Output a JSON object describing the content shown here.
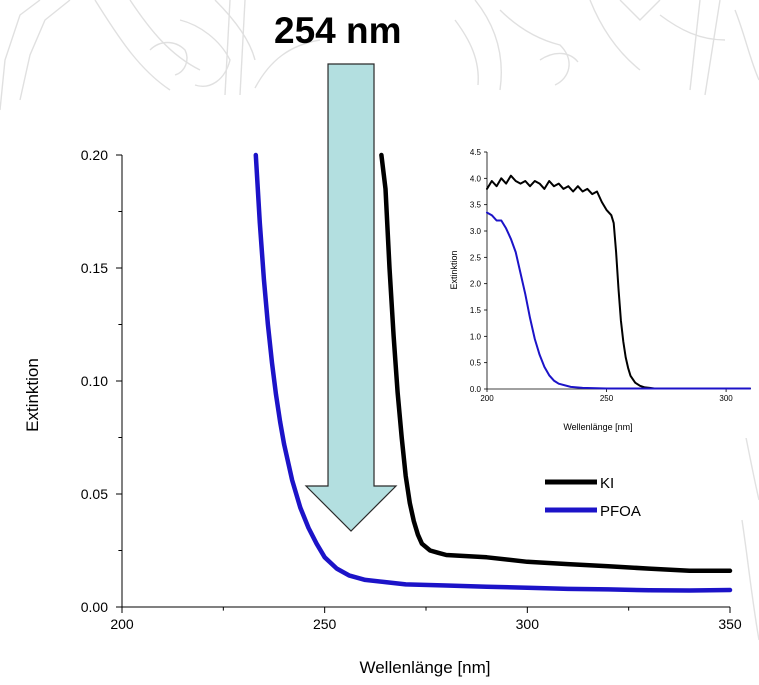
{
  "colors": {
    "ki": "#000000",
    "pfoa": "#1c13c8",
    "arrow_fill": "#b3dfe0",
    "arrow_stroke": "#2a2a2a",
    "watermark": "#d9d9d9"
  },
  "annotation": {
    "text": "254 nm"
  },
  "chart_data": [
    {
      "type": "line",
      "role": "main",
      "xlabel": "Wellenlänge [nm]",
      "ylabel": "Extinktion",
      "xlim": [
        200,
        350
      ],
      "ylim": [
        0,
        0.2
      ],
      "xticks": [
        "200",
        "250",
        "300",
        "350"
      ],
      "yticks": [
        "0.00",
        "0.05",
        "0.10",
        "0.15",
        "0.20"
      ],
      "legend": {
        "position": "bottom-right",
        "entries": [
          "KI",
          "PFOA"
        ]
      },
      "series": [
        {
          "name": "KI",
          "color": "#000000",
          "x": [
            264,
            265,
            266,
            267,
            268,
            269,
            270,
            271,
            272,
            273,
            274,
            276,
            278,
            280,
            285,
            290,
            300,
            310,
            320,
            330,
            340,
            350
          ],
          "y": [
            0.2,
            0.185,
            0.15,
            0.12,
            0.095,
            0.075,
            0.058,
            0.046,
            0.038,
            0.032,
            0.028,
            0.025,
            0.024,
            0.023,
            0.0225,
            0.022,
            0.02,
            0.019,
            0.018,
            0.017,
            0.016,
            0.016
          ]
        },
        {
          "name": "PFOA",
          "color": "#1c13c8",
          "x": [
            233,
            234,
            235,
            236,
            237,
            238,
            239,
            240,
            242,
            244,
            246,
            248,
            250,
            253,
            256,
            260,
            265,
            270,
            280,
            290,
            300,
            310,
            320,
            330,
            340,
            350
          ],
          "y": [
            0.2,
            0.17,
            0.145,
            0.125,
            0.108,
            0.094,
            0.082,
            0.072,
            0.056,
            0.044,
            0.035,
            0.028,
            0.022,
            0.017,
            0.014,
            0.012,
            0.011,
            0.01,
            0.0095,
            0.009,
            0.0085,
            0.008,
            0.0078,
            0.0074,
            0.0073,
            0.0075
          ]
        }
      ]
    },
    {
      "type": "line",
      "role": "inset",
      "xlabel": "Wellenlänge [nm]",
      "ylabel": "Extinktion",
      "xlim": [
        200,
        310
      ],
      "ylim": [
        0,
        4.5
      ],
      "xticks": [
        "200",
        "250",
        "300"
      ],
      "yticks": [
        "0.0",
        "0.5",
        "1.0",
        "1.5",
        "2.0",
        "2.5",
        "3.0",
        "3.5",
        "4.0",
        "4.5"
      ],
      "series": [
        {
          "name": "KI",
          "color": "#000000",
          "x": [
            200,
            202,
            204,
            206,
            208,
            210,
            212,
            214,
            216,
            218,
            220,
            222,
            224,
            226,
            228,
            230,
            232,
            234,
            236,
            238,
            240,
            242,
            244,
            246,
            248,
            250,
            252,
            253,
            254,
            255,
            256,
            257,
            258,
            259,
            260,
            262,
            264,
            266,
            268,
            270,
            275,
            280,
            290,
            300,
            310
          ],
          "y": [
            3.8,
            3.95,
            3.85,
            4.0,
            3.9,
            4.05,
            3.95,
            3.9,
            3.95,
            3.85,
            3.95,
            3.9,
            3.8,
            3.95,
            3.85,
            3.9,
            3.8,
            3.85,
            3.75,
            3.85,
            3.75,
            3.8,
            3.7,
            3.75,
            3.55,
            3.4,
            3.3,
            3.15,
            2.6,
            1.9,
            1.3,
            0.9,
            0.6,
            0.4,
            0.25,
            0.12,
            0.06,
            0.03,
            0.02,
            0.01,
            0.01,
            0.01,
            0.01,
            0.01,
            0.01
          ]
        },
        {
          "name": "PFOA",
          "color": "#1c13c8",
          "x": [
            200,
            202,
            204,
            206,
            208,
            210,
            212,
            214,
            216,
            218,
            220,
            222,
            224,
            226,
            228,
            230,
            235,
            240,
            250,
            260,
            280,
            300,
            310
          ],
          "y": [
            3.35,
            3.3,
            3.2,
            3.2,
            3.05,
            2.85,
            2.6,
            2.2,
            1.8,
            1.35,
            0.95,
            0.65,
            0.42,
            0.26,
            0.16,
            0.1,
            0.04,
            0.02,
            0.01,
            0.01,
            0.01,
            0.01,
            0.01
          ]
        }
      ]
    }
  ]
}
